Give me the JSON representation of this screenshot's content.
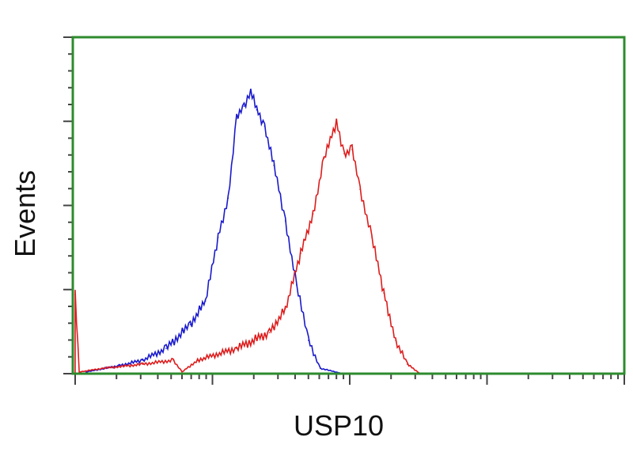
{
  "chart_data": {
    "type": "line",
    "title": "",
    "xlabel": "USP10",
    "ylabel": "Events",
    "x_scale": "log",
    "xlim": [
      1,
      10000
    ],
    "ylim": [
      0,
      100
    ],
    "grid": false,
    "legend": "none",
    "axis_color": "#2e8b2e",
    "series": [
      {
        "color": "#1a1acc",
        "x": [
          1.2,
          2.1,
          3.1,
          4.6,
          6.9,
          8.9,
          11,
          13,
          15,
          17,
          19,
          21,
          24,
          28,
          34,
          41,
          50,
          61,
          85
        ],
        "y": [
          0.5,
          2.4,
          4.0,
          7.5,
          14.6,
          21.6,
          40.5,
          52.2,
          75.8,
          79.5,
          84.2,
          78.4,
          73.6,
          61.9,
          45.4,
          26.4,
          9.9,
          1.6,
          0.2
        ]
      },
      {
        "color": "#dd1c1c",
        "x": [
          1,
          1,
          1.07,
          1.6,
          3.1,
          5.2,
          6.0,
          7.8,
          15,
          26,
          34,
          44,
          54,
          65,
          80,
          91,
          104,
          119,
          145,
          177,
          216,
          263,
          321
        ],
        "y": [
          0,
          23.5,
          0.5,
          1.6,
          2.8,
          4.0,
          0.5,
          4.0,
          7.5,
          12.2,
          19.3,
          35.8,
          47.5,
          64,
          74.6,
          65.4,
          66.6,
          54.8,
          40.5,
          24,
          9.9,
          2.8,
          0.2
        ]
      }
    ]
  }
}
